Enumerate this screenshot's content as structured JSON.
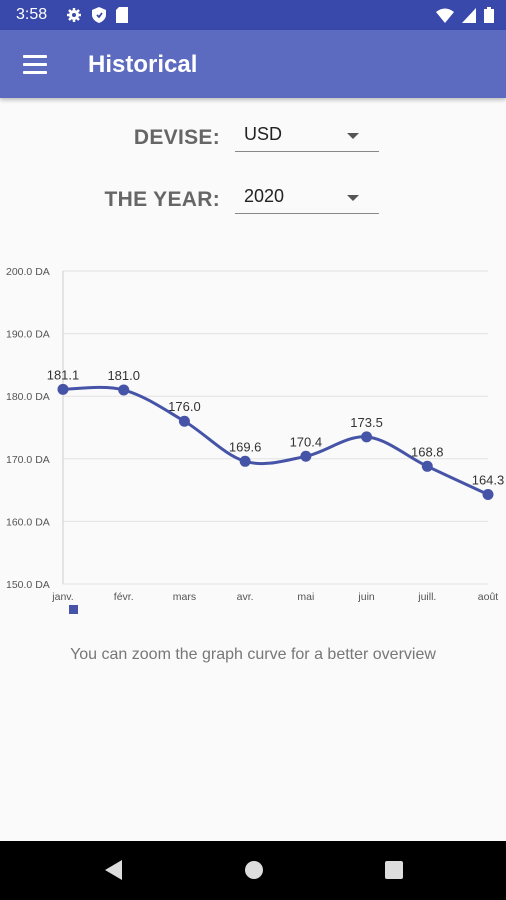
{
  "status_bar": {
    "time": "3:58",
    "left_icons": [
      "gear-icon",
      "shield-icon",
      "sd-card-icon"
    ],
    "right_icons": [
      "wifi-icon",
      "signal-icon",
      "battery-icon"
    ]
  },
  "app_bar": {
    "menu_icon": "hamburger-menu-icon",
    "title": "Historical",
    "color": "#5c6bc0",
    "status_color": "#3949ab"
  },
  "form": {
    "devise_label": "DEVISE:",
    "devise_value": "USD",
    "year_label": "THE YEAR:",
    "year_value": "2020"
  },
  "chart_data": {
    "type": "line",
    "categories": [
      "janv.",
      "févr.",
      "mars",
      "avr.",
      "mai",
      "juin",
      "juill.",
      "août"
    ],
    "series": [
      {
        "values": [
          181.1,
          181.0,
          176.0,
          169.6,
          170.4,
          173.5,
          168.8,
          164.3
        ],
        "color": "#4654a8"
      }
    ],
    "ylim": [
      150,
      200
    ],
    "yticks": [
      150,
      160,
      170,
      180,
      190,
      200
    ],
    "ytick_labels": [
      "150.0 DA",
      "160.0 DA",
      "170.0 DA",
      "180.0 DA",
      "190.0 DA",
      "200.0 DA"
    ],
    "data_labels": [
      "181.1",
      "181.0",
      "176.0",
      "169.6",
      "170.4",
      "173.5",
      "168.8",
      "164.3"
    ],
    "curve": "smooth",
    "grid": "horizontal",
    "legend": "bottom-left"
  },
  "hint": "You can zoom the graph curve for a better overview",
  "nav_bar": {
    "back": "back-triangle-icon",
    "home": "home-circle-icon",
    "recents": "recents-square-icon"
  }
}
